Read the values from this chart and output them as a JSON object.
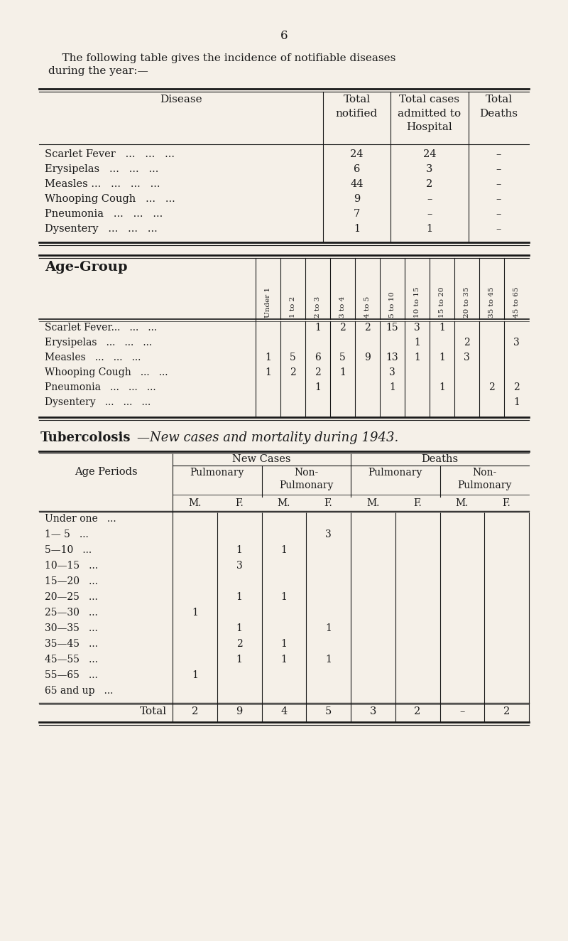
{
  "bg_color": "#f5f0e8",
  "text_color": "#1a1a1a",
  "page_number": "6",
  "intro_line1": "    The following table gives the incidence of notifiable diseases",
  "intro_line2": "during the year:—",
  "t1_rows": [
    [
      "Scarlet Fever",
      "24",
      "24",
      "–"
    ],
    [
      "Erysipelas",
      "6",
      "3",
      "–"
    ],
    [
      "Measles ...",
      "44",
      "2",
      "–"
    ],
    [
      "Whooping Cough",
      "9",
      "–",
      "–"
    ],
    [
      "Pneumonia",
      "7",
      "–",
      "–"
    ],
    [
      "Dysentery",
      "1",
      "1",
      "–"
    ]
  ],
  "t2_age_headers": [
    "Under 1",
    "1 to 2",
    "2 to 3",
    "3 to 4",
    "4 to 5",
    "5 to 10",
    "10 to 15",
    "15 to 20",
    "20 to 35",
    "35 to 45",
    "45 to 65"
  ],
  "t2_rows": [
    [
      "Scarlet Fever...",
      "",
      "",
      "1",
      "2",
      "2",
      "15",
      "3",
      "1",
      "",
      "",
      ""
    ],
    [
      "Erysipelas",
      "",
      "",
      "",
      "",
      "",
      "",
      "1",
      "",
      "2",
      "",
      "3"
    ],
    [
      "Measles",
      "1",
      "5",
      "6",
      "5",
      "9",
      "13",
      "1",
      "1",
      "3",
      "",
      ""
    ],
    [
      "Whooping Cough",
      "1",
      "2",
      "2",
      "1",
      "",
      "3",
      "",
      "",
      "",
      "",
      ""
    ],
    [
      "Pneumonia",
      "",
      "",
      "1",
      "",
      "",
      "1",
      "",
      "1",
      "",
      "2",
      "2"
    ],
    [
      "Dysentery",
      "",
      "",
      "",
      "",
      "",
      "",
      "",
      "",
      "",
      "",
      "1"
    ]
  ],
  "t3_title_bold": "Tubercolosis",
  "t3_title_italic": "—New cases and mortality during 1943.",
  "t3_age_periods": [
    "Under one",
    "1— 5",
    "5—10",
    "10—15",
    "15—20",
    "20—25",
    "25—30",
    "30—35",
    "35—45",
    "45—55",
    "55—65",
    "65 and up"
  ],
  "t3_nc_pulm_m": [
    "",
    "",
    "",
    "",
    "",
    "",
    "1",
    "",
    "",
    "",
    "1",
    ""
  ],
  "t3_nc_pulm_f": [
    "",
    "",
    "1",
    "3",
    "",
    "1",
    "",
    "1",
    "2",
    "1",
    "",
    ""
  ],
  "t3_nc_npulm_m": [
    "",
    "",
    "1",
    "",
    "",
    "1",
    "",
    "",
    "1",
    "1",
    "",
    ""
  ],
  "t3_nc_npulm_f": [
    "",
    "3",
    "",
    "",
    "",
    "",
    "",
    "1",
    "",
    "1",
    "",
    ""
  ],
  "t3_d_pulm_m": [
    "",
    "",
    "",
    "",
    "",
    "",
    "",
    "",
    "",
    "",
    "",
    ""
  ],
  "t3_d_pulm_f": [
    "",
    "",
    "",
    "",
    "",
    "",
    "",
    "",
    "",
    "",
    "",
    ""
  ],
  "t3_d_npulm_m": [
    "",
    "",
    "",
    "",
    "",
    "",
    "",
    "",
    "",
    "",
    "",
    ""
  ],
  "t3_d_npulm_f": [
    "",
    "",
    "",
    "",
    "",
    "",
    "",
    "",
    "",
    "",
    "",
    ""
  ],
  "t3_totals": [
    "2",
    "9",
    "4",
    "5",
    "3",
    "2",
    "–",
    "2"
  ]
}
